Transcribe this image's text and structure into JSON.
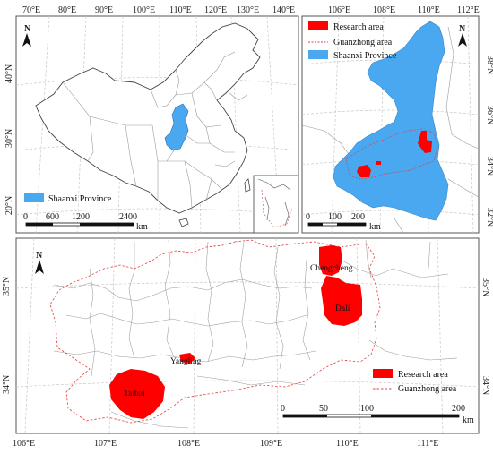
{
  "panel_a": {
    "lon_ticks": [
      "70°E",
      "80°E",
      "90°E",
      "100°E",
      "110°E",
      "120°E",
      "130°E",
      "140°E"
    ],
    "lat_ticks": [
      "40°N",
      "30°N",
      "20°N"
    ],
    "north": "N",
    "legend_item": "Shaanxi Province",
    "scale_values": [
      "0",
      "600",
      "1200",
      "2400"
    ],
    "scale_unit": "km"
  },
  "panel_b": {
    "lon_ticks": [
      "106°E",
      "108°E",
      "110°E",
      "112°E"
    ],
    "lat_ticks": [
      "38°N",
      "36°N",
      "34°N",
      "32°N"
    ],
    "north": "N",
    "legend": [
      "Research area",
      "Guanzhong area",
      "Shaanxi Province"
    ],
    "scale_values": [
      "0",
      "100",
      "200"
    ],
    "scale_unit": "km"
  },
  "panel_c": {
    "lon_ticks": [
      "106°E",
      "107°E",
      "108°E",
      "109°E",
      "110°E",
      "111°E"
    ],
    "lat_ticks": [
      "35°N",
      "34°N"
    ],
    "north": "N",
    "cities": [
      "Chengcheng",
      "Dali",
      "Yangling",
      "Taibai"
    ],
    "legend": [
      "Research area",
      "Guanzhong area"
    ],
    "scale_values": [
      "0",
      "50",
      "100",
      "200"
    ],
    "scale_unit": "km"
  },
  "colors": {
    "research": "#ff0000",
    "shaanxi": "#4aa8f0",
    "guanzhong_border": "#e04040",
    "boundary": "#9a9a9a",
    "graticule": "#c8c8c8"
  }
}
